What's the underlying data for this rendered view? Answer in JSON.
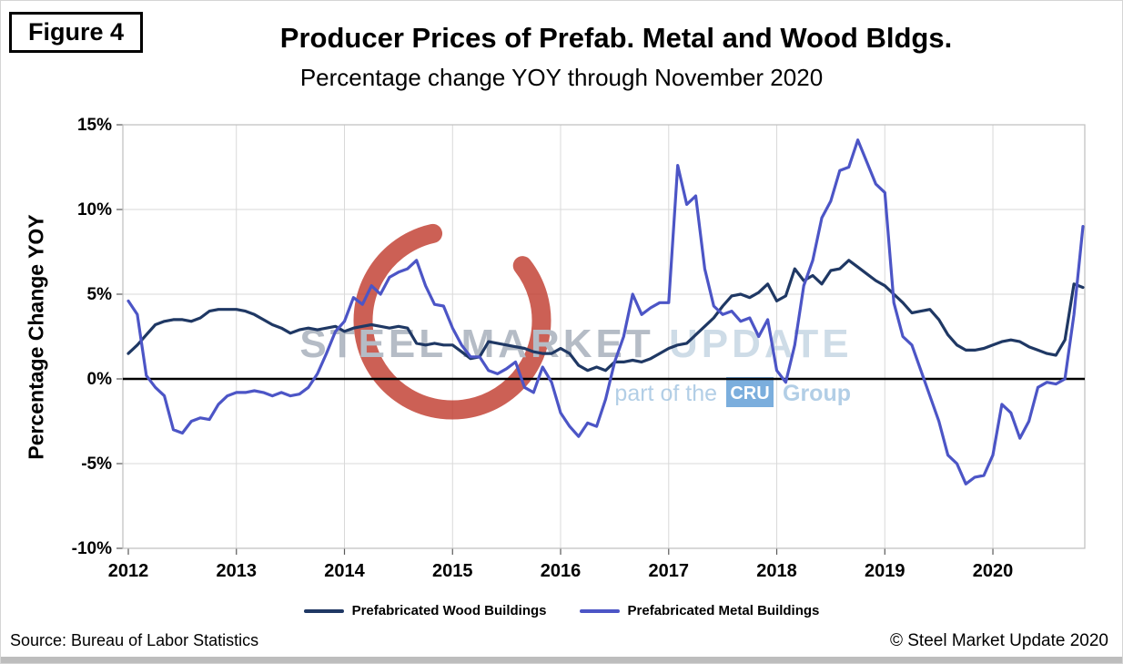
{
  "figure_label": "Figure 4",
  "watermark": {
    "brand_part1": "STEEL MARKET",
    "brand_part2": "UPDATE",
    "tagline_prefix": "part of the",
    "badge": "CRU",
    "tagline_suffix": "Group"
  },
  "footer": {
    "source": "Source: Bureau of Labor Statistics",
    "copyright": "© Steel Market Update 2020"
  },
  "chart_data": {
    "type": "line",
    "title": "Producer Prices of Prefab. Metal and Wood Bldgs.",
    "subtitle": "Percentage change YOY through November 2020",
    "ylabel": "Percentage Change YOY",
    "xlabel": "",
    "ylim": [
      -10,
      15
    ],
    "yticks": [
      15,
      10,
      5,
      0,
      -5,
      -10
    ],
    "ytick_labels": [
      "15%",
      "10%",
      "5%",
      "0%",
      "-5%",
      "-10%"
    ],
    "xtick_labels": [
      "2012",
      "2013",
      "2014",
      "2015",
      "2016",
      "2017",
      "2018",
      "2019",
      "2020"
    ],
    "x_frequency": "monthly",
    "x_range": "Jan 2012 – Nov 2020",
    "grid": true,
    "zero_line": true,
    "legend_position": "bottom",
    "series": [
      {
        "name": "Prefabricated Wood Buildings",
        "color": "#1F3864",
        "values": [
          1.5,
          2.0,
          2.6,
          3.2,
          3.4,
          3.5,
          3.5,
          3.4,
          3.6,
          4.0,
          4.1,
          4.1,
          4.1,
          4.0,
          3.8,
          3.5,
          3.2,
          3.0,
          2.7,
          2.9,
          3.0,
          2.9,
          3.0,
          3.1,
          2.8,
          3.0,
          3.1,
          3.2,
          3.1,
          3.0,
          3.1,
          3.0,
          2.1,
          2.0,
          2.1,
          2.0,
          2.0,
          1.6,
          1.2,
          1.3,
          2.2,
          2.1,
          2.0,
          1.9,
          1.8,
          1.6,
          1.5,
          1.5,
          1.8,
          1.5,
          0.8,
          0.5,
          0.7,
          0.5,
          1.0,
          1.0,
          1.1,
          1.0,
          1.2,
          1.5,
          1.8,
          2.0,
          2.1,
          2.6,
          3.1,
          3.6,
          4.3,
          4.9,
          5.0,
          4.8,
          5.1,
          5.6,
          4.6,
          4.9,
          6.5,
          5.8,
          6.1,
          5.6,
          6.4,
          6.5,
          7.0,
          6.6,
          6.2,
          5.8,
          5.5,
          5.0,
          4.5,
          3.9,
          4.0,
          4.1,
          3.5,
          2.6,
          2.0,
          1.7,
          1.7,
          1.8,
          2.0,
          2.2,
          2.3,
          2.2,
          1.9,
          1.7,
          1.5,
          1.4,
          2.3,
          5.6,
          5.4
        ]
      },
      {
        "name": "Prefabricated Metal Buildings",
        "color": "#4C55C6",
        "values": [
          4.6,
          3.8,
          0.2,
          -0.5,
          -1.0,
          -3.0,
          -3.2,
          -2.5,
          -2.3,
          -2.4,
          -1.5,
          -1.0,
          -0.8,
          -0.8,
          -0.7,
          -0.8,
          -1.0,
          -0.8,
          -1.0,
          -0.9,
          -0.5,
          0.3,
          1.5,
          2.8,
          3.4,
          4.8,
          4.4,
          5.5,
          5.0,
          6.0,
          6.3,
          6.5,
          7.0,
          5.5,
          4.4,
          4.3,
          3.0,
          2.0,
          1.3,
          1.3,
          0.5,
          0.3,
          0.6,
          1.0,
          -0.5,
          -0.8,
          0.7,
          -0.2,
          -2.0,
          -2.8,
          -3.4,
          -2.6,
          -2.8,
          -1.2,
          1.0,
          2.5,
          5.0,
          3.8,
          4.2,
          4.5,
          4.5,
          12.6,
          10.3,
          10.8,
          6.5,
          4.3,
          3.8,
          4.0,
          3.4,
          3.6,
          2.5,
          3.5,
          0.5,
          -0.2,
          2.0,
          5.5,
          7.0,
          9.5,
          10.5,
          12.3,
          12.5,
          14.1,
          12.8,
          11.5,
          11.0,
          4.5,
          2.5,
          2.0,
          0.5,
          -1.0,
          -2.5,
          -4.5,
          -5.0,
          -6.2,
          -5.8,
          -5.7,
          -4.5,
          -1.5,
          -2.0,
          -3.5,
          -2.5,
          -0.5,
          -0.2,
          -0.3,
          0.0,
          3.8,
          9.0
        ]
      }
    ]
  }
}
